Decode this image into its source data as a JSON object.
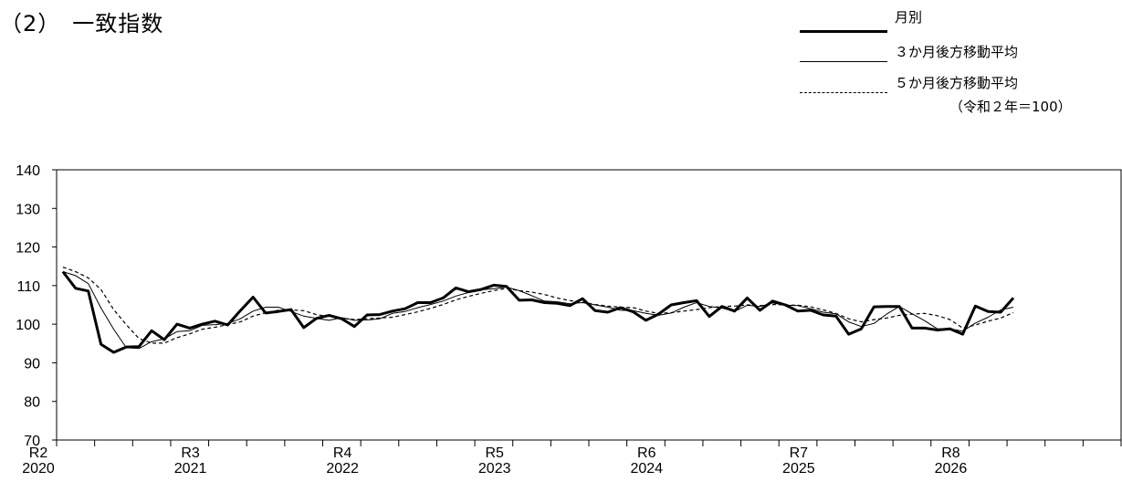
{
  "header": {
    "title": "（2）　一致指数"
  },
  "legend": [
    {
      "label": "月別",
      "style": "thick-solid"
    },
    {
      "label": "３か月後方移動平均",
      "style": "thin-solid"
    },
    {
      "label": "５か月後方移動平均",
      "style": "dashed"
    }
  ],
  "unit_note": "（令和２年＝100）",
  "colors": {
    "line": "#000000",
    "axis": "#000000",
    "background": "#ffffff"
  },
  "chart_data": {
    "type": "line",
    "title": "一致指数",
    "ylim": [
      70,
      140
    ],
    "yticks": [
      70,
      80,
      90,
      100,
      110,
      120,
      130,
      140
    ],
    "x_axis_months": 84,
    "start": "2020-01",
    "year_labels": [
      {
        "era": "R2",
        "year": "2020"
      },
      {
        "era": "R3",
        "year": "2021"
      },
      {
        "era": "R4",
        "year": "2022"
      },
      {
        "era": "R5",
        "year": "2023"
      },
      {
        "era": "R6",
        "year": "2024"
      },
      {
        "era": "R7",
        "year": "2025"
      },
      {
        "era": "R8",
        "year": "2026"
      }
    ],
    "grid": false,
    "series": [
      {
        "name": "月別",
        "values": [
          113.6,
          109.3,
          108.6,
          94.8,
          92.7,
          94.1,
          94.2,
          98.3,
          96.0,
          100.0,
          99.0,
          100.0,
          100.8,
          99.8,
          103.5,
          107.0,
          102.9,
          103.3,
          103.8,
          99.1,
          101.5,
          102.3,
          101.4,
          99.4,
          102.4,
          102.5,
          103.4,
          104.0,
          105.6,
          105.6,
          106.8,
          109.4,
          108.4,
          109.0,
          110.1,
          109.8,
          106.2,
          106.3,
          105.6,
          105.4,
          104.8,
          106.6,
          103.5,
          103.1,
          104.3,
          103.2,
          101.0,
          102.6,
          105.0,
          105.6,
          106.1,
          102.0,
          104.6,
          103.4,
          106.8,
          103.6,
          106.0,
          105.0,
          103.4,
          103.6,
          102.4,
          102.1,
          97.4,
          98.8,
          104.5,
          104.6,
          104.6,
          99.0,
          99.0,
          98.5,
          98.8,
          97.4,
          104.7,
          103.3,
          103.1,
          106.8
        ]
      },
      {
        "name": "３か月後方移動平均",
        "values": [
          113.6,
          112.6,
          110.5,
          104.2,
          98.7,
          93.9,
          93.7,
          95.5,
          96.2,
          98.1,
          98.3,
          99.7,
          99.9,
          100.2,
          101.4,
          103.4,
          104.4,
          104.4,
          103.3,
          102.1,
          101.5,
          101.0,
          101.7,
          101.0,
          101.1,
          101.4,
          102.8,
          103.3,
          104.3,
          105.1,
          106.0,
          107.3,
          108.2,
          108.9,
          109.2,
          109.6,
          108.7,
          107.4,
          106.0,
          105.8,
          105.3,
          105.6,
          105.0,
          104.4,
          103.6,
          103.5,
          102.8,
          102.3,
          102.9,
          104.4,
          105.6,
          104.6,
          104.2,
          103.3,
          104.9,
          104.6,
          105.5,
          104.9,
          104.8,
          104.0,
          103.1,
          102.7,
          100.6,
          99.4,
          100.2,
          102.6,
          104.6,
          102.7,
          100.9,
          98.8,
          98.8,
          98.2,
          100.3,
          101.8,
          103.7,
          104.4
        ]
      },
      {
        "name": "５か月後方移動平均",
        "values": [
          114.8,
          113.6,
          112.0,
          109.0,
          103.8,
          99.9,
          96.3,
          95.1,
          95.1,
          96.5,
          97.5,
          98.7,
          99.2,
          99.9,
          100.6,
          102.1,
          103.0,
          103.6,
          103.7,
          103.5,
          102.5,
          102.0,
          101.6,
          101.2,
          101.4,
          101.6,
          101.8,
          102.5,
          103.2,
          104.1,
          105.1,
          106.3,
          107.2,
          108.0,
          108.7,
          109.3,
          108.7,
          108.3,
          107.7,
          106.8,
          106.1,
          105.7,
          105.1,
          104.7,
          104.4,
          104.3,
          103.4,
          102.8,
          103.0,
          103.4,
          103.8,
          104.3,
          104.6,
          104.7,
          105.0,
          104.8,
          105.1,
          105.0,
          104.9,
          104.5,
          103.7,
          102.8,
          101.4,
          100.6,
          101.2,
          101.6,
          102.3,
          102.6,
          102.8,
          102.2,
          101.2,
          99.0,
          99.8,
          100.8,
          101.6,
          103.0
        ]
      }
    ]
  }
}
